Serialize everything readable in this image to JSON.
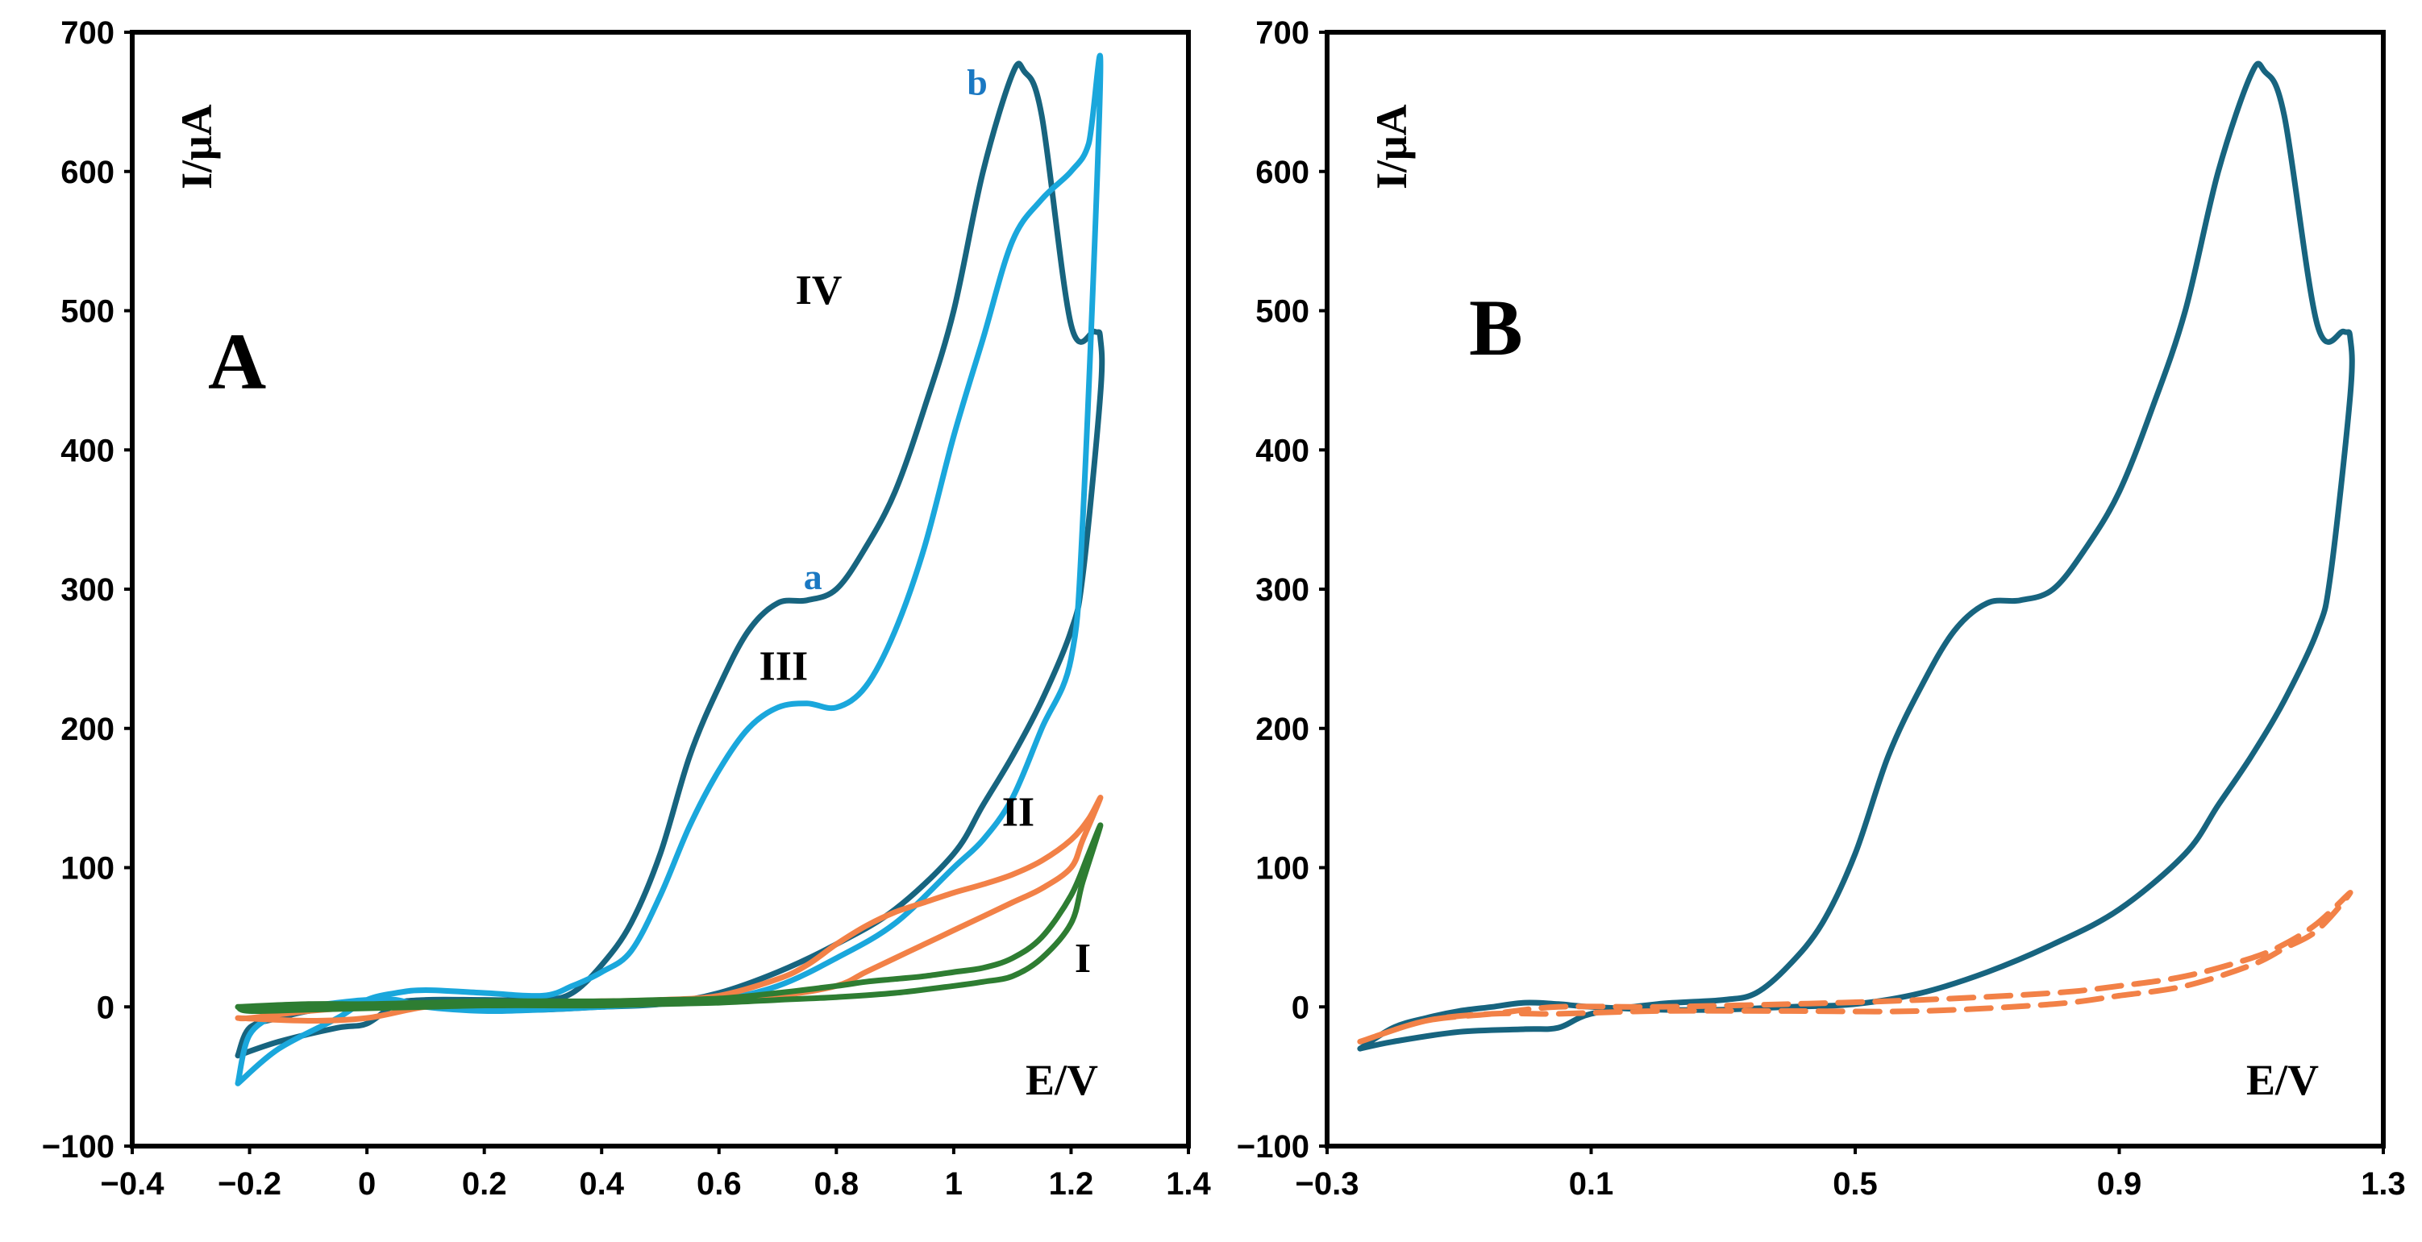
{
  "chart_data": [
    {
      "type": "line",
      "panel": "A",
      "xlabel": "E/V",
      "ylabel": "I/μA",
      "xlim": [
        -0.4,
        1.4
      ],
      "ylim": [
        -100,
        700
      ],
      "xticks": [
        -0.4,
        -0.2,
        0,
        0.2,
        0.4,
        0.6,
        0.8,
        1,
        1.2,
        1.4
      ],
      "xtick_labels": [
        "−0.4",
        "−0.2",
        "0",
        "0.2",
        "0.4",
        "0.6",
        "0.8",
        "1",
        "1.2",
        "1.4"
      ],
      "yticks": [
        -100,
        0,
        100,
        200,
        300,
        400,
        500,
        600,
        700
      ],
      "ytick_labels": [
        "−100",
        "0",
        "100",
        "200",
        "300",
        "400",
        "500",
        "600",
        "700"
      ],
      "annotations": [
        {
          "text": "IV",
          "x": 0.77,
          "y": 505,
          "style": "black"
        },
        {
          "text": "III",
          "x": 0.71,
          "y": 235,
          "style": "black"
        },
        {
          "text": "II",
          "x": 1.11,
          "y": 130,
          "style": "black"
        },
        {
          "text": "I",
          "x": 1.22,
          "y": 25,
          "style": "black"
        },
        {
          "text": "a",
          "x": 0.76,
          "y": 300,
          "style": "blue"
        },
        {
          "text": "b",
          "x": 1.04,
          "y": 655,
          "style": "blue"
        }
      ],
      "series": [
        {
          "name": "IV",
          "color": "#17647f",
          "x": [
            -0.22,
            -0.15,
            -0.05,
            0,
            0.05,
            0.1,
            0.2,
            0.3,
            0.35,
            0.4,
            0.45,
            0.5,
            0.55,
            0.6,
            0.65,
            0.7,
            0.75,
            0.8,
            0.85,
            0.9,
            0.95,
            1.0,
            1.05,
            1.1,
            1.12,
            1.15,
            1.2,
            1.24,
            1.25,
            1.25,
            1.22,
            1.2,
            1.15,
            1.1,
            1.05,
            1.0,
            0.9,
            0.8,
            0.7,
            0.6,
            0.5,
            0.4,
            0.3,
            0.2,
            0.1,
            0.05,
            0,
            -0.05,
            -0.1,
            -0.15,
            -0.2,
            -0.22
          ],
          "y": [
            -35,
            -25,
            -15,
            -12,
            2,
            5,
            5,
            5,
            10,
            30,
            60,
            110,
            180,
            230,
            270,
            290,
            292,
            300,
            330,
            370,
            430,
            500,
            600,
            670,
            672,
            640,
            490,
            485,
            480,
            440,
            310,
            270,
            220,
            180,
            145,
            110,
            70,
            45,
            25,
            10,
            2,
            0,
            -2,
            -2,
            0,
            2,
            3,
            0,
            -3,
            -8,
            -15,
            -35
          ]
        },
        {
          "name": "III",
          "color": "#1aa7dc",
          "x": [
            -0.22,
            -0.15,
            -0.05,
            0,
            0.05,
            0.1,
            0.2,
            0.3,
            0.35,
            0.4,
            0.45,
            0.5,
            0.55,
            0.6,
            0.65,
            0.7,
            0.75,
            0.8,
            0.85,
            0.9,
            0.95,
            1.0,
            1.05,
            1.1,
            1.15,
            1.2,
            1.23,
            1.25,
            1.22,
            1.2,
            1.15,
            1.1,
            1.05,
            1.0,
            0.9,
            0.8,
            0.7,
            0.6,
            0.5,
            0.4,
            0.3,
            0.2,
            0.1,
            0.05,
            0,
            -0.05,
            -0.1,
            -0.15,
            -0.2,
            -0.22
          ],
          "y": [
            -55,
            -30,
            -8,
            5,
            10,
            12,
            10,
            8,
            15,
            25,
            40,
            80,
            130,
            170,
            200,
            215,
            218,
            215,
            230,
            270,
            330,
            410,
            480,
            550,
            580,
            600,
            620,
            670,
            350,
            250,
            200,
            150,
            120,
            100,
            60,
            35,
            15,
            5,
            2,
            0,
            -2,
            -3,
            0,
            5,
            5,
            3,
            0,
            -5,
            -20,
            -55
          ]
        },
        {
          "name": "II",
          "color": "#f28147",
          "x": [
            -0.22,
            -0.1,
            0,
            0.1,
            0.2,
            0.3,
            0.4,
            0.5,
            0.6,
            0.7,
            0.75,
            0.8,
            0.85,
            0.9,
            0.95,
            1.0,
            1.05,
            1.1,
            1.15,
            1.2,
            1.23,
            1.25,
            1.22,
            1.2,
            1.15,
            1.1,
            1.05,
            1.0,
            0.95,
            0.9,
            0.85,
            0.8,
            0.7,
            0.6,
            0.5,
            0.4,
            0.3,
            0.2,
            0.1,
            0,
            -0.1,
            -0.2,
            -0.22
          ],
          "y": [
            -8,
            -10,
            -8,
            0,
            2,
            3,
            4,
            5,
            8,
            20,
            30,
            45,
            58,
            68,
            75,
            82,
            88,
            95,
            105,
            120,
            135,
            150,
            120,
            100,
            85,
            75,
            65,
            55,
            45,
            35,
            25,
            15,
            8,
            5,
            3,
            3,
            2,
            2,
            2,
            0,
            -3,
            -8,
            -8
          ]
        },
        {
          "name": "I",
          "color": "#2e7d32",
          "x": [
            -0.22,
            -0.1,
            0,
            0.1,
            0.2,
            0.3,
            0.4,
            0.5,
            0.6,
            0.7,
            0.8,
            0.85,
            0.9,
            0.95,
            1.0,
            1.05,
            1.1,
            1.15,
            1.2,
            1.23,
            1.25,
            1.22,
            1.2,
            1.15,
            1.1,
            1.05,
            1.0,
            0.9,
            0.8,
            0.7,
            0.6,
            0.5,
            0.4,
            0.3,
            0.2,
            0.1,
            0,
            -0.1,
            -0.2,
            -0.22
          ],
          "y": [
            0,
            2,
            2,
            3,
            4,
            4,
            4,
            5,
            6,
            10,
            15,
            18,
            20,
            22,
            25,
            28,
            35,
            50,
            80,
            110,
            130,
            90,
            60,
            35,
            22,
            18,
            15,
            10,
            7,
            5,
            3,
            2,
            1,
            1,
            1,
            0,
            -1,
            -2,
            -3,
            0
          ]
        }
      ]
    },
    {
      "type": "line",
      "panel": "B",
      "xlabel": "E/V",
      "ylabel": "I/μA",
      "xlim": [
        -0.3,
        1.3
      ],
      "ylim": [
        -100,
        700
      ],
      "xticks": [
        -0.3,
        0.1,
        0.5,
        0.9,
        1.3
      ],
      "xtick_labels": [
        "−0.3",
        "0.1",
        "0.5",
        "0.9",
        "1.3"
      ],
      "yticks": [
        -100,
        0,
        100,
        200,
        300,
        400,
        500,
        600,
        700
      ],
      "ytick_labels": [
        "−100",
        "0",
        "100",
        "200",
        "300",
        "400",
        "500",
        "600",
        "700"
      ],
      "series": [
        {
          "name": "solid",
          "color": "#17647f",
          "dash": false,
          "x": [
            -0.25,
            -0.2,
            -0.1,
            0,
            0.05,
            0.1,
            0.2,
            0.3,
            0.35,
            0.4,
            0.45,
            0.5,
            0.55,
            0.6,
            0.65,
            0.7,
            0.75,
            0.8,
            0.85,
            0.9,
            0.95,
            1.0,
            1.05,
            1.1,
            1.12,
            1.15,
            1.2,
            1.24,
            1.25,
            1.25,
            1.22,
            1.2,
            1.15,
            1.1,
            1.05,
            1.0,
            0.9,
            0.8,
            0.7,
            0.6,
            0.5,
            0.4,
            0.3,
            0.2,
            0.1,
            0.05,
            0,
            -0.05,
            -0.1,
            -0.15,
            -0.2,
            -0.25
          ],
          "y": [
            -30,
            -25,
            -18,
            -16,
            -15,
            -5,
            2,
            5,
            10,
            30,
            60,
            110,
            180,
            230,
            270,
            290,
            292,
            300,
            330,
            370,
            430,
            500,
            600,
            670,
            672,
            640,
            490,
            485,
            480,
            440,
            310,
            270,
            220,
            180,
            145,
            110,
            70,
            45,
            25,
            10,
            2,
            0,
            -2,
            -2,
            0,
            2,
            3,
            0,
            -3,
            -8,
            -15,
            -30
          ]
        },
        {
          "name": "dashed",
          "color": "#f28147",
          "dash": true,
          "x": [
            -0.25,
            -0.15,
            -0.05,
            0.05,
            0.2,
            0.4,
            0.6,
            0.8,
            0.9,
            1.0,
            1.1,
            1.15,
            1.2,
            1.25,
            1.2,
            1.15,
            1.1,
            1.0,
            0.9,
            0.8,
            0.6,
            0.4,
            0.2,
            0.05,
            -0.05,
            -0.15,
            -0.25
          ],
          "y": [
            -25,
            -10,
            -5,
            0,
            0,
            2,
            5,
            10,
            15,
            22,
            35,
            45,
            60,
            82,
            55,
            42,
            30,
            15,
            8,
            2,
            -3,
            -3,
            -3,
            -5,
            -5,
            -10,
            -25
          ]
        }
      ]
    }
  ]
}
